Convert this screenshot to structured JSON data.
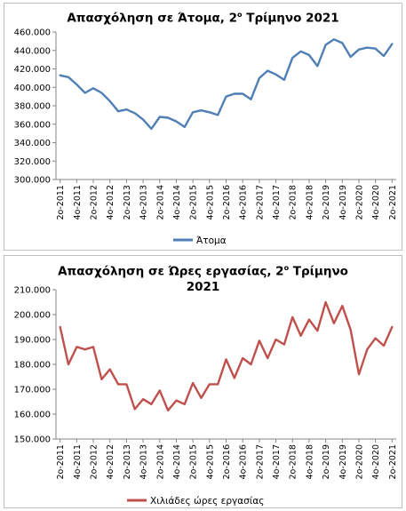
{
  "chart_data": [
    {
      "type": "line",
      "title_main": "Απασχόληση σε Άτομα, 2",
      "title_sup": "ο",
      "title_tail": " Τρίμηνο 2021",
      "ylim": [
        300000,
        460000
      ],
      "yticks": [
        "300.000",
        "320.000",
        "340.000",
        "360.000",
        "380.000",
        "400.000",
        "420.000",
        "440.000",
        "460.000"
      ],
      "ytick_values": [
        300000,
        320000,
        340000,
        360000,
        380000,
        400000,
        420000,
        440000,
        460000
      ],
      "grid": false,
      "legend_position": "bottom",
      "color": "#4f7fb5",
      "xticks": [
        "2ο-2011",
        "4ο-2011",
        "2ο-2012",
        "4ο-2012",
        "2ο-2013",
        "4ο-2013",
        "2ο-2014",
        "4ο-2014",
        "2ο-2015",
        "4ο-2015",
        "2ο-2016",
        "4ο-2016",
        "2ο-2017",
        "4ο-2017",
        "2ο-2018",
        "4ο-2018",
        "2ο-2019",
        "4ο-2019",
        "2ο-2020",
        "4ο-2020",
        "2ο-2021"
      ],
      "series": [
        {
          "name": "Άτομα",
          "values": [
            413000,
            411000,
            403000,
            394000,
            399000,
            394000,
            385000,
            374000,
            376000,
            372000,
            365000,
            355000,
            368000,
            367000,
            363000,
            357000,
            373000,
            375000,
            373000,
            370000,
            390000,
            393000,
            393000,
            387000,
            410000,
            418000,
            414000,
            408000,
            432000,
            439000,
            435000,
            423000,
            446000,
            452000,
            448000,
            433000,
            441000,
            443000,
            442000,
            434000,
            447000
          ]
        }
      ]
    },
    {
      "type": "line",
      "title_line1": "Απασχόληση σε Ώρες εργασίας, 2",
      "title_sup": "ο",
      "title_tail": " Τρίμηνο",
      "title_line2": "2021",
      "ylim": [
        150000,
        210000
      ],
      "yticks": [
        "150.000",
        "160.000",
        "170.000",
        "180.000",
        "190.000",
        "200.000",
        "210.000"
      ],
      "ytick_values": [
        150000,
        160000,
        170000,
        180000,
        190000,
        200000,
        210000
      ],
      "grid": false,
      "legend_position": "bottom",
      "color": "#c0504d",
      "xticks": [
        "2ο-2011",
        "4ο-2011",
        "2ο-2012",
        "4ο-2012",
        "2ο-2013",
        "4ο-2013",
        "2ο-2014",
        "4ο-2014",
        "2ο-2015",
        "4ο-2015",
        "2ο-2016",
        "4ο-2016",
        "2ο-2017",
        "4ο-2017",
        "2ο-2018",
        "4ο-2018",
        "2ο-2019",
        "4ο-2019",
        "2ο-2020",
        "4ο-2020",
        "2ο-2021"
      ],
      "series": [
        {
          "name": "Χιλιάδες ώρες εργασίας",
          "values": [
            195000,
            180000,
            187000,
            186000,
            187000,
            174000,
            178000,
            172000,
            172000,
            162000,
            166000,
            164000,
            169500,
            161500,
            165500,
            164000,
            172500,
            166500,
            172000,
            172000,
            182000,
            174500,
            182500,
            180000,
            189500,
            182500,
            190000,
            188000,
            199000,
            191500,
            198000,
            193500,
            205000,
            196500,
            203500,
            194000,
            176000,
            186000,
            190500,
            187500,
            195000
          ]
        }
      ]
    }
  ]
}
